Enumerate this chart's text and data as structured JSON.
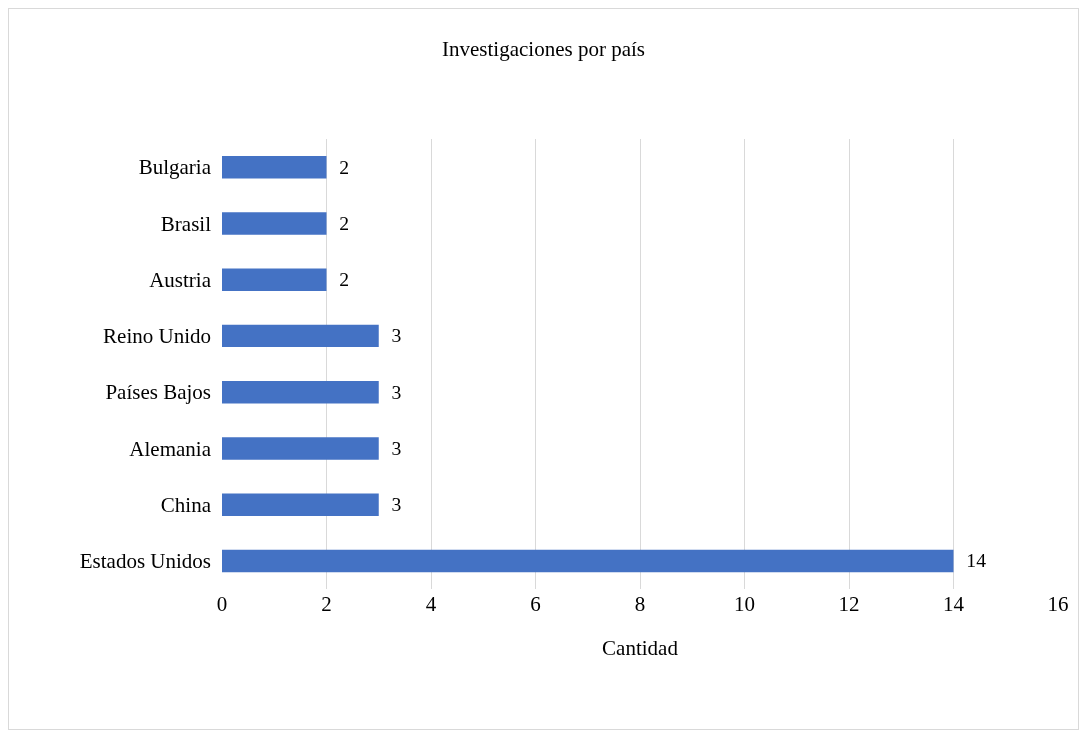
{
  "chart_data": {
    "type": "bar",
    "orientation": "horizontal",
    "title": "Investigaciones por país",
    "xlabel": "Cantidad",
    "categories": [
      "Bulgaria",
      "Brasil",
      "Austria",
      "Reino Unido",
      "Países Bajos",
      "Alemania",
      "China",
      "Estados Unidos"
    ],
    "values": [
      2,
      2,
      2,
      3,
      3,
      3,
      3,
      14
    ],
    "color": "#4472c4",
    "xlim": [
      0,
      16
    ],
    "xticks": [
      0,
      2,
      4,
      6,
      8,
      10,
      12,
      14,
      16
    ],
    "grid": "x",
    "data_labels": true
  }
}
